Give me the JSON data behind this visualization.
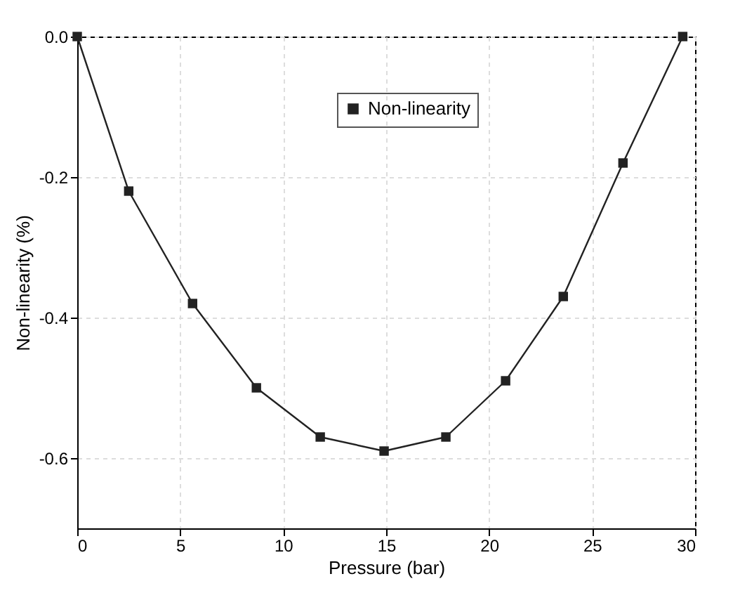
{
  "chart_data": {
    "type": "line",
    "xlabel": "Pressure (bar)",
    "ylabel": "Non-linearity (%)",
    "x": [
      0,
      2.5,
      5.6,
      8.7,
      11.8,
      14.9,
      17.9,
      20.8,
      23.6,
      26.5,
      29.4
    ],
    "series": [
      {
        "name": "Non-linearity",
        "color": "#222222",
        "values": [
          0,
          -0.22,
          -0.38,
          -0.5,
          -0.57,
          -0.59,
          -0.57,
          -0.49,
          -0.37,
          -0.18,
          0
        ]
      }
    ],
    "xlim": [
      0,
      30
    ],
    "xticks": [
      0,
      5,
      10,
      15,
      20,
      25,
      30
    ],
    "ylim": [
      -0.7,
      0
    ],
    "yticks": [
      {
        "value": 0,
        "label": "0.0"
      },
      -0.2,
      -0.4,
      -0.6
    ],
    "grid": true,
    "legend": "top",
    "marker": "square",
    "line_style": "solid"
  }
}
